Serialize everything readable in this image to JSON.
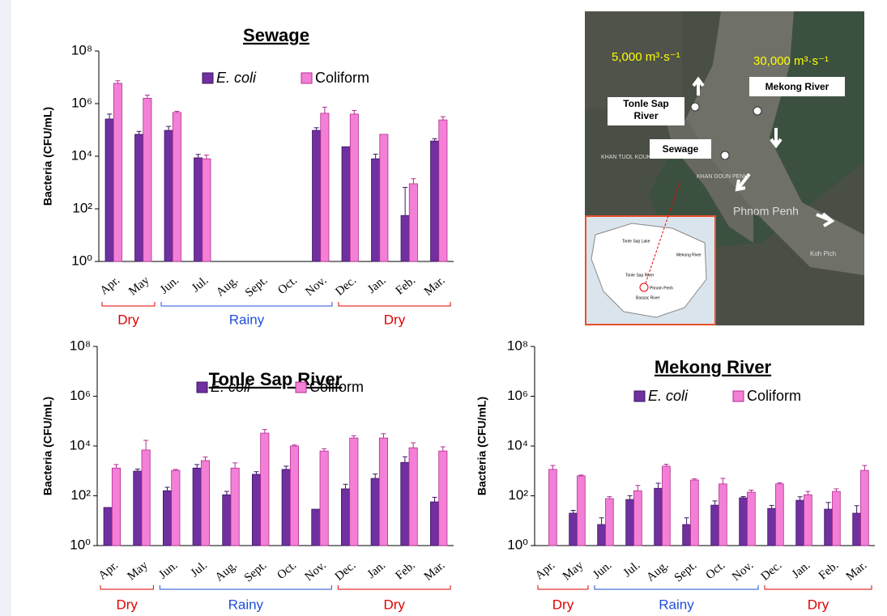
{
  "chart_data": [
    {
      "type": "bar",
      "title": "Sewage",
      "y_label": "Bacteria (CFU/mL)",
      "log_scale": true,
      "ylim": [
        1,
        100000000
      ],
      "yticks": [
        {
          "value": 1,
          "label": "10⁰"
        },
        {
          "value": 100,
          "label": "10²"
        },
        {
          "value": 10000,
          "label": "10⁴"
        },
        {
          "value": 1000000,
          "label": "10⁶"
        },
        {
          "value": 100000000,
          "label": "10⁸"
        }
      ],
      "categories": [
        "Apr.",
        "May",
        "Jun.",
        "Jul.",
        "Aug.",
        "Sept.",
        "Oct.",
        "Nov.",
        "Dec.",
        "Jan.",
        "Feb.",
        "Mar."
      ],
      "series": [
        {
          "name": "E. coli",
          "color": "#7030a0",
          "values": [
            260000,
            68000,
            96000,
            8700,
            1,
            1,
            1,
            96000,
            23000,
            8000,
            56,
            38000
          ],
          "errors": [
            140000,
            20000,
            40000,
            3000,
            null,
            null,
            null,
            25000,
            null,
            4000,
            600,
            8000
          ]
        },
        {
          "name": "Coliform",
          "color": "#f47fd6",
          "values": [
            5900000,
            1600000,
            460000,
            8000,
            1,
            1,
            1,
            430000,
            400000,
            68000,
            900,
            240000
          ],
          "errors": [
            1500000,
            500000,
            50000,
            3000,
            null,
            null,
            null,
            300000,
            150000,
            null,
            500,
            80000
          ]
        }
      ],
      "seasons": [
        {
          "label": "Dry",
          "color": "#e00000"
        },
        {
          "label": "Rainy",
          "color": "#1f4fd8"
        },
        {
          "label": "Dry",
          "color": "#e00000"
        }
      ]
    },
    {
      "type": "bar",
      "title": "Tonle Sap River",
      "y_label": "Bacteria (CFU/mL)",
      "log_scale": true,
      "ylim": [
        1,
        100000000
      ],
      "yticks": [
        {
          "value": 1,
          "label": "10⁰"
        },
        {
          "value": 100,
          "label": "10²"
        },
        {
          "value": 10000,
          "label": "10⁴"
        },
        {
          "value": 1000000,
          "label": "10⁶"
        },
        {
          "value": 100000000,
          "label": "10⁸"
        }
      ],
      "categories": [
        "Apr.",
        "May",
        "Jun.",
        "Jul.",
        "Aug.",
        "Sept.",
        "Oct.",
        "Nov.",
        "Dec.",
        "Jan.",
        "Feb.",
        "Mar."
      ],
      "series": [
        {
          "name": "E. coli",
          "color": "#7030a0",
          "values": [
            34,
            980,
            160,
            1300,
            110,
            730,
            1150,
            29,
            190,
            500,
            2200,
            57
          ],
          "errors": [
            null,
            200,
            60,
            500,
            40,
            200,
            400,
            null,
            100,
            250,
            1500,
            30
          ]
        },
        {
          "name": "Coliform",
          "color": "#f47fd6",
          "values": [
            1300,
            6900,
            1050,
            2600,
            1300,
            33000,
            10000,
            6300,
            21000,
            21000,
            8500,
            6300
          ],
          "errors": [
            500,
            10000,
            100,
            1000,
            800,
            13000,
            1000,
            1500,
            5000,
            10000,
            5000,
            3000
          ]
        }
      ],
      "seasons": [
        {
          "label": "Dry",
          "color": "#e00000"
        },
        {
          "label": "Rainy",
          "color": "#1f4fd8"
        },
        {
          "label": "Dry",
          "color": "#e00000"
        }
      ]
    },
    {
      "type": "bar",
      "title": "Mekong River",
      "y_label": "Bacteria (CFU/mL)",
      "log_scale": true,
      "ylim": [
        1,
        100000000
      ],
      "yticks": [
        {
          "value": 1,
          "label": "10⁰"
        },
        {
          "value": 100,
          "label": "10²"
        },
        {
          "value": 10000,
          "label": "10⁴"
        },
        {
          "value": 1000000,
          "label": "10⁶"
        },
        {
          "value": 100000000,
          "label": "10⁸"
        }
      ],
      "categories": [
        "Apr.",
        "May",
        "Jun.",
        "Jul.",
        "Aug.",
        "Sept.",
        "Oct.",
        "Nov.",
        "Dec.",
        "Jan.",
        "Feb.",
        "Mar."
      ],
      "series": [
        {
          "name": "E. coli",
          "color": "#7030a0",
          "values": [
            null,
            20,
            7,
            71,
            200,
            7,
            42,
            83,
            31,
            66,
            29,
            20
          ],
          "errors": [
            null,
            6,
            6,
            30,
            120,
            6,
            20,
            10,
            10,
            25,
            25,
            20
          ]
        },
        {
          "name": "Coliform",
          "color": "#f47fd6",
          "values": [
            1150,
            630,
            77,
            160,
            1550,
            430,
            300,
            140,
            300,
            110,
            150,
            1050
          ],
          "errors": [
            500,
            50,
            15,
            100,
            300,
            50,
            200,
            30,
            30,
            40,
            40,
            600
          ]
        }
      ],
      "seasons": [
        {
          "label": "Dry",
          "color": "#e00000"
        },
        {
          "label": "Rainy",
          "color": "#1f4fd8"
        },
        {
          "label": "Dry",
          "color": "#e00000"
        }
      ]
    }
  ],
  "map": {
    "flows": [
      "5,000 m³·s⁻¹",
      "30,000 m³·s⁻¹"
    ],
    "sites": [
      "Tonle Sap River",
      "Mekong River",
      "Sewage"
    ],
    "places": [
      "KHAN TUOL KOUK",
      "KHAN DOUN PENH",
      "Phnom Penh",
      "Koh Pich"
    ],
    "inset": [
      "Tonle Sap Lake",
      "Mekong River",
      "Tonle Sap River",
      "Phnom Penh",
      "Bassac River"
    ]
  }
}
